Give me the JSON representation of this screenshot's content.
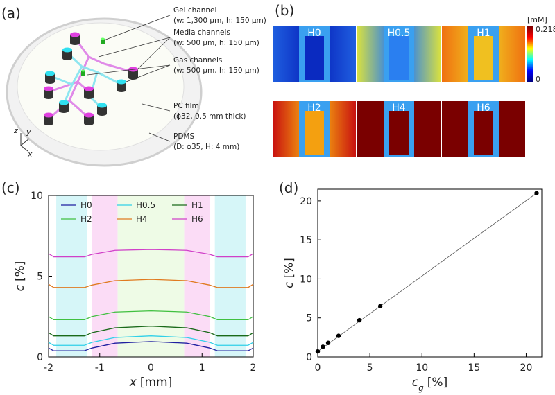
{
  "schematic": {
    "panel_label": "(a)",
    "callouts": [
      {
        "name": "Gel channel",
        "spec": "(w: 1,300 μm, h: 150 μm)"
      },
      {
        "name": "Media channels",
        "spec": "(w: 500 μm, h: 150 μm)"
      },
      {
        "name": "Gas channels",
        "spec": "(w: 500 μm, h: 150 μm)"
      },
      {
        "name": "PC film",
        "spec": "(ϕ32, 0.5 mm thick)"
      },
      {
        "name": "PDMS",
        "spec": "(D: ϕ35, H: 4 mm)"
      }
    ],
    "axes": [
      "z",
      "y",
      "x"
    ]
  },
  "heatmaps": {
    "panel_label": "(b)",
    "tiles": [
      {
        "label": "H0",
        "edge_color": "#1f5fe0",
        "center_color": "#0a2ac0"
      },
      {
        "label": "H0.5",
        "edge_color": "#d8e040",
        "center_color": "#2a7ff0"
      },
      {
        "label": "H1",
        "edge_color": "#f07010",
        "center_color": "#f0c020"
      },
      {
        "label": "H2",
        "edge_color": "#c81010",
        "center_color": "#f4a010"
      },
      {
        "label": "H4",
        "edge_color": "#7a0000",
        "center_color": "#7a0000"
      },
      {
        "label": "H6",
        "edge_color": "#7a0000",
        "center_color": "#7a0000"
      }
    ],
    "channel_color": "#3aa0f0",
    "colorbar": {
      "unit": "[mM]",
      "max": 0.218,
      "min": 0,
      "colors": [
        "#00007f",
        "#0000ff",
        "#00ffff",
        "#ffff00",
        "#ff0000",
        "#7f0000"
      ]
    }
  },
  "chart_data": [
    {
      "type": "line",
      "panel_label": "(c)",
      "x": [
        -2,
        -1.9,
        -1.3,
        -1.15,
        -0.7,
        0,
        0.7,
        1.15,
        1.3,
        1.9,
        2
      ],
      "series": [
        {
          "name": "H0",
          "color": "#1f1fa0",
          "values": [
            0.55,
            0.38,
            0.38,
            0.55,
            0.85,
            0.95,
            0.85,
            0.55,
            0.38,
            0.38,
            0.55
          ]
        },
        {
          "name": "H0.5",
          "color": "#30d0e8",
          "values": [
            0.9,
            0.72,
            0.72,
            0.9,
            1.2,
            1.3,
            1.2,
            0.9,
            0.72,
            0.72,
            0.9
          ]
        },
        {
          "name": "H1",
          "color": "#1a6a1a",
          "values": [
            1.5,
            1.3,
            1.3,
            1.5,
            1.8,
            1.9,
            1.8,
            1.5,
            1.3,
            1.3,
            1.5
          ]
        },
        {
          "name": "H2",
          "color": "#40c040",
          "values": [
            2.5,
            2.3,
            2.3,
            2.5,
            2.78,
            2.85,
            2.78,
            2.5,
            2.3,
            2.3,
            2.5
          ]
        },
        {
          "name": "H4",
          "color": "#e07a20",
          "values": [
            4.5,
            4.3,
            4.3,
            4.45,
            4.72,
            4.8,
            4.72,
            4.45,
            4.3,
            4.3,
            4.5
          ]
        },
        {
          "name": "H6",
          "color": "#d040c8",
          "values": [
            6.4,
            6.2,
            6.2,
            6.35,
            6.6,
            6.65,
            6.6,
            6.35,
            6.2,
            6.2,
            6.4
          ]
        }
      ],
      "bands": [
        {
          "x": [
            -1.85,
            -1.25
          ],
          "color": "#d6f6f8"
        },
        {
          "x": [
            1.25,
            1.85
          ],
          "color": "#d6f6f8"
        },
        {
          "x": [
            -1.15,
            -0.65
          ],
          "color": "#fbdcf6"
        },
        {
          "x": [
            0.65,
            1.15
          ],
          "color": "#fbdcf6"
        },
        {
          "x": [
            -0.65,
            0.65
          ],
          "color": "#eefbe6"
        }
      ],
      "xlim": [
        -2,
        2
      ],
      "ylim": [
        0,
        10
      ],
      "xticks": [
        -2,
        -1,
        0,
        1,
        2
      ],
      "yticks": [
        0,
        5,
        10
      ],
      "x_label_var": "x",
      "x_label_unit": "[mm]",
      "y_label_var": "c",
      "y_label_unit": "[%]"
    },
    {
      "type": "scatter",
      "panel_label": "(d)",
      "x": [
        0,
        0.5,
        1,
        2,
        4,
        6,
        21
      ],
      "values": [
        0.7,
        1.3,
        1.8,
        2.7,
        4.7,
        6.5,
        21
      ],
      "color": "#000000",
      "fit_line": true,
      "xlim": [
        0,
        21.5
      ],
      "ylim": [
        0,
        21.5
      ],
      "xticks": [
        0,
        5,
        10,
        15,
        20
      ],
      "yticks": [
        0,
        5,
        10,
        15,
        20
      ],
      "x_label_var": "c",
      "x_label_sub": "g",
      "x_label_unit": "[%]",
      "y_label_var": "c",
      "y_label_unit": "[%]"
    }
  ]
}
